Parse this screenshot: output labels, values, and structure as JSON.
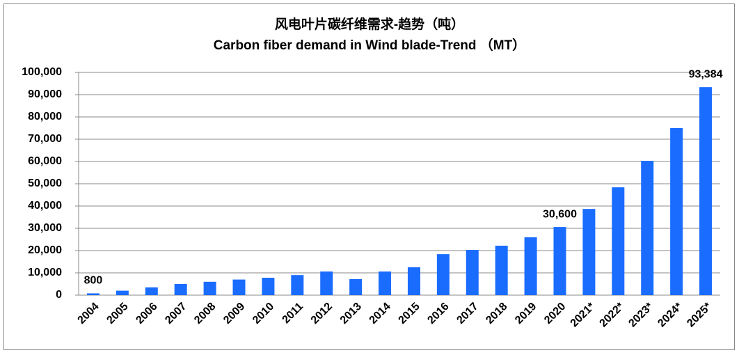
{
  "chart_data": {
    "type": "bar",
    "title": "风电叶片碳纤维需求-趋势（吨）",
    "subtitle": "Carbon fiber demand in Wind blade-Trend （MT）",
    "categories": [
      "2004",
      "2005",
      "2006",
      "2007",
      "2008",
      "2009",
      "2010",
      "2011",
      "2012",
      "2013",
      "2014",
      "2015",
      "2016",
      "2017",
      "2018",
      "2019",
      "2020",
      "2021*",
      "2022*",
      "2023*",
      "2024*",
      "2025*"
    ],
    "values": [
      800,
      2000,
      3500,
      5000,
      6000,
      7000,
      7800,
      9000,
      10600,
      7200,
      10600,
      12500,
      18400,
      20300,
      22200,
      26000,
      30600,
      38700,
      48400,
      60300,
      75000,
      93384
    ],
    "value_labels": [
      "800",
      null,
      null,
      null,
      null,
      null,
      null,
      null,
      null,
      null,
      null,
      null,
      null,
      null,
      null,
      null,
      "30,600",
      null,
      null,
      null,
      null,
      "93,384"
    ],
    "color": "#1a6cff",
    "ylim": [
      0,
      100000
    ],
    "yticks": [
      0,
      {
        "value": 10000,
        "label": "10,000"
      },
      {
        "value": 20000,
        "label": "20,000"
      },
      {
        "value": 30000,
        "label": "30,000"
      },
      {
        "value": 40000,
        "label": "40,000"
      },
      {
        "value": 50000,
        "label": "50,000"
      },
      {
        "value": 60000,
        "label": "60,000"
      },
      {
        "value": 70000,
        "label": "70,000"
      },
      {
        "value": 80000,
        "label": "80,000"
      },
      {
        "value": 90000,
        "label": "90,000"
      },
      {
        "value": 100000,
        "label": "100,000"
      }
    ],
    "grid": true
  }
}
